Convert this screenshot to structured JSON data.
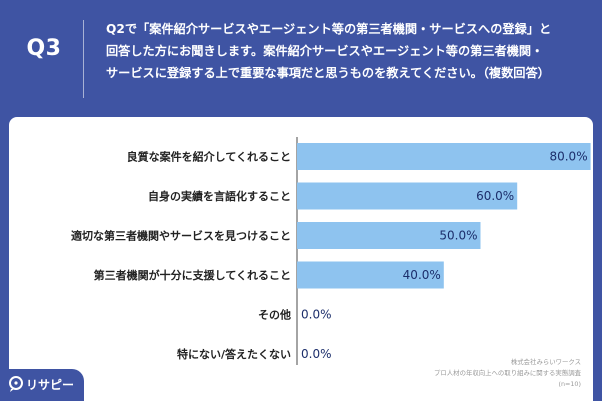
{
  "header": {
    "q_number": "Q3",
    "question_lines": [
      "Q2で「案件紹介サービスやエージェント等の第三者機関・サービスへの登録」と",
      "回答した方にお聞きします。案件紹介サービスやエージェント等の第三者機関・",
      "サービスに登録する上で重要な事項だと思うものを教えてください。（複数回答）"
    ]
  },
  "chart_data": {
    "type": "bar",
    "orientation": "horizontal",
    "categories": [
      "良質な案件を紹介してくれること",
      "自身の実績を言語化すること",
      "適切な第三者機関やサービスを見つけること",
      "第三者機関が十分に支援してくれること",
      "その他",
      "特にない/答えたくない"
    ],
    "values": [
      80.0,
      60.0,
      50.0,
      40.0,
      0.0,
      0.0
    ],
    "value_labels": [
      "80.0%",
      "60.0%",
      "50.0%",
      "40.0%",
      "0.0%",
      "0.0%"
    ],
    "xlim": [
      0,
      100
    ],
    "bar_color": "#8ec3ef",
    "axis_color": "#4a4a4a",
    "value_label_color": "#1c2e6b"
  },
  "source": {
    "lines": [
      "株式会社みらいワークス",
      "プロ人材の年収向上への取り組みに関する実態調査",
      "(n=10)"
    ]
  },
  "brand": {
    "name": "リサピー",
    "icon": "speech-bubble-icon",
    "color": "#3f54a3"
  }
}
